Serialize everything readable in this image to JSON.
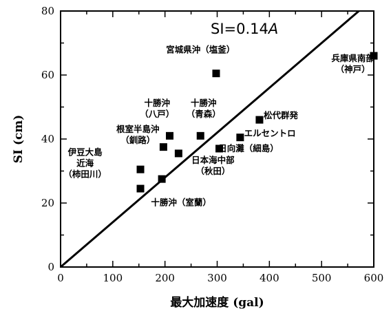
{
  "chart_data": {
    "type": "scatter",
    "title": "",
    "xlabel": "最大加速度 (gal)",
    "ylabel": "SI (cm)",
    "xlim": [
      0,
      600
    ],
    "ylim": [
      0,
      80
    ],
    "xticks": [
      0,
      100,
      200,
      300,
      400,
      500,
      600
    ],
    "yticks": [
      0,
      20,
      40,
      60,
      80
    ],
    "grid": false,
    "series": [
      {
        "marker": "filled-square",
        "color": "#000000",
        "points": [
          {
            "x": 153,
            "y": 24.5
          },
          {
            "x": 153,
            "y": 30.5
          },
          {
            "x": 194,
            "y": 27.5
          },
          {
            "x": 197,
            "y": 37.5
          },
          {
            "x": 209,
            "y": 41
          },
          {
            "x": 226,
            "y": 35.5
          },
          {
            "x": 268,
            "y": 41
          },
          {
            "x": 298,
            "y": 60.5
          },
          {
            "x": 304,
            "y": 37
          },
          {
            "x": 344,
            "y": 40.5
          },
          {
            "x": 381,
            "y": 46
          },
          {
            "x": 600,
            "y": 66
          }
        ]
      }
    ],
    "fit_line": {
      "slope": 0.14,
      "intercept": 0
    },
    "formula_label": {
      "prefix": "SI=0.14",
      "var": "A"
    },
    "annotations": [
      {
        "lines": [
          "宮城県沖（塩釜）"
        ],
        "x": 268,
        "y": 67
      },
      {
        "lines": [
          "兵庫県南部",
          "（神戸）"
        ],
        "x": 560,
        "y": 64.3
      },
      {
        "lines": [
          "十勝沖",
          "（八戸）"
        ],
        "x": 185,
        "y": 50.3
      },
      {
        "lines": [
          "十勝沖",
          "（青森）"
        ],
        "x": 274,
        "y": 50.3
      },
      {
        "lines": [
          "根室半島沖",
          "（釧路）"
        ],
        "x": 148,
        "y": 42.1
      },
      {
        "lines": [
          "伊豆大島",
          "近海",
          "（柿田川）"
        ],
        "x": 47,
        "y": 34.9
      },
      {
        "lines": [
          "松代群発"
        ],
        "x": 422,
        "y": 46.5
      },
      {
        "lines": [
          "エルセントロ"
        ],
        "x": 401,
        "y": 40.9
      },
      {
        "lines": [
          "日向灘（細島）"
        ],
        "x": 360,
        "y": 36.1
      },
      {
        "lines": [
          "日本海中部",
          "（秋田）"
        ],
        "x": 292,
        "y": 32.5
      },
      {
        "lines": [
          "十勝沖（室蘭）"
        ],
        "x": 231,
        "y": 19.2
      }
    ]
  }
}
